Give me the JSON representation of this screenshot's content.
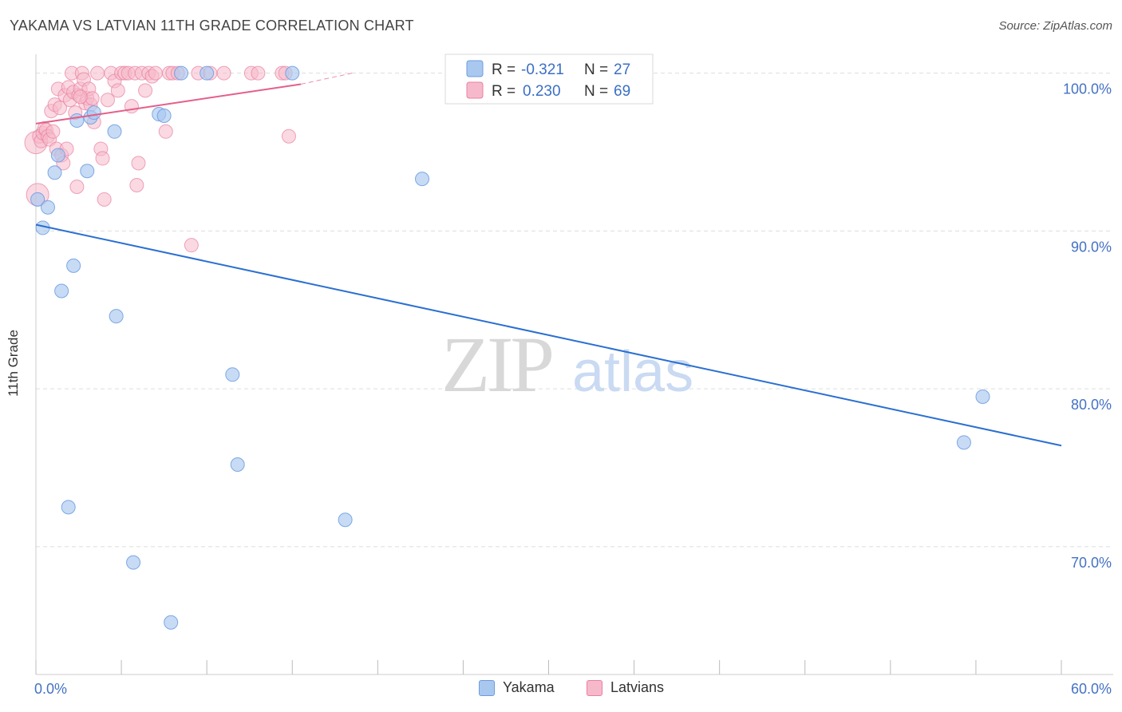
{
  "header": {
    "title": "YAKAMA VS LATVIAN 11TH GRADE CORRELATION CHART",
    "source": "Source: ZipAtlas.com"
  },
  "watermark": {
    "zip": "ZIP",
    "atlas": "atlas"
  },
  "colors": {
    "yakama_fill": "#a9c8f0",
    "yakama_stroke": "#6b9be0",
    "yakama_line": "#2a6fd1",
    "latvian_fill": "#f6b9cb",
    "latvian_stroke": "#e97fa0",
    "latvian_line": "#e4608a",
    "axis_text": "#4472c4"
  },
  "legend": {
    "rows": [
      {
        "r_label": "R =",
        "r_value": "-0.321",
        "n_label": "N =",
        "n_value": "27"
      },
      {
        "r_label": "R =",
        "r_value": "0.230",
        "n_label": "N =",
        "n_value": "69"
      }
    ]
  },
  "chart_data": {
    "type": "scatter",
    "title": "YAKAMA VS LATVIAN 11TH GRADE CORRELATION CHART",
    "xlabel": "",
    "ylabel": "11th Grade",
    "xlim": [
      0,
      60
    ],
    "ylim": [
      61.9,
      101.6
    ],
    "x_tick_labels": [
      "0.0%",
      "60.0%"
    ],
    "y_ticks": [
      70,
      80,
      90,
      100
    ],
    "y_tick_labels": [
      "70.0%",
      "80.0%",
      "90.0%",
      "100.0%"
    ],
    "grid": "horizontal dashed",
    "series": [
      {
        "name": "Yakama",
        "r": -0.321,
        "n": 27,
        "trend": {
          "x0": 0,
          "y0": 90.4,
          "x1": 60,
          "y1": 76.4
        },
        "points": [
          [
            0.1,
            92.0
          ],
          [
            0.4,
            90.2
          ],
          [
            0.7,
            91.5
          ],
          [
            1.1,
            93.7
          ],
          [
            1.3,
            94.8
          ],
          [
            1.5,
            86.2
          ],
          [
            2.2,
            87.8
          ],
          [
            2.4,
            97.0
          ],
          [
            3.0,
            93.8
          ],
          [
            3.2,
            97.2
          ],
          [
            3.4,
            97.5
          ],
          [
            4.6,
            96.3
          ],
          [
            4.7,
            84.6
          ],
          [
            7.2,
            97.4
          ],
          [
            7.5,
            97.3
          ],
          [
            8.5,
            100.0
          ],
          [
            10.0,
            100.0
          ],
          [
            11.5,
            80.9
          ],
          [
            11.8,
            75.2
          ],
          [
            15.0,
            100.0
          ],
          [
            18.1,
            71.7
          ],
          [
            22.6,
            93.3
          ],
          [
            5.7,
            69.0
          ],
          [
            1.9,
            72.5
          ],
          [
            7.9,
            65.2
          ],
          [
            55.4,
            79.5
          ],
          [
            54.3,
            76.6
          ]
        ]
      },
      {
        "name": "Latvians",
        "r": 0.23,
        "n": 69,
        "trend": {
          "x0": 0,
          "y0": 96.8,
          "x1": 15.5,
          "y1": 99.3
        },
        "trend_dashed": {
          "x0": 15.5,
          "y0": 99.3,
          "x1": 18.5,
          "y1": 100.0
        },
        "points": [
          [
            0.0,
            95.6
          ],
          [
            0.1,
            92.3
          ],
          [
            0.2,
            96.0
          ],
          [
            0.3,
            95.7
          ],
          [
            0.4,
            96.2
          ],
          [
            0.5,
            96.5
          ],
          [
            0.6,
            96.4
          ],
          [
            0.7,
            96.0
          ],
          [
            0.8,
            95.8
          ],
          [
            0.9,
            97.6
          ],
          [
            1.0,
            96.3
          ],
          [
            1.1,
            98.0
          ],
          [
            1.2,
            95.2
          ],
          [
            1.3,
            99.0
          ],
          [
            1.4,
            97.8
          ],
          [
            1.5,
            94.8
          ],
          [
            1.6,
            94.3
          ],
          [
            1.7,
            98.6
          ],
          [
            1.8,
            95.2
          ],
          [
            1.9,
            99.1
          ],
          [
            2.0,
            98.3
          ],
          [
            2.1,
            100.0
          ],
          [
            2.2,
            98.8
          ],
          [
            2.3,
            97.5
          ],
          [
            2.4,
            92.8
          ],
          [
            2.5,
            98.6
          ],
          [
            2.6,
            99.0
          ],
          [
            2.7,
            100.0
          ],
          [
            2.8,
            99.6
          ],
          [
            2.9,
            98.1
          ],
          [
            3.0,
            98.4
          ],
          [
            3.1,
            99.0
          ],
          [
            3.2,
            98.0
          ],
          [
            3.4,
            96.9
          ],
          [
            3.6,
            100.0
          ],
          [
            3.8,
            95.2
          ],
          [
            3.9,
            94.6
          ],
          [
            4.0,
            92.0
          ],
          [
            4.2,
            98.3
          ],
          [
            4.4,
            100.0
          ],
          [
            4.6,
            99.5
          ],
          [
            4.8,
            98.9
          ],
          [
            5.0,
            100.0
          ],
          [
            5.2,
            100.0
          ],
          [
            5.4,
            100.0
          ],
          [
            5.6,
            97.9
          ],
          [
            5.8,
            100.0
          ],
          [
            5.9,
            92.9
          ],
          [
            6.0,
            94.3
          ],
          [
            6.2,
            100.0
          ],
          [
            6.4,
            98.9
          ],
          [
            6.6,
            100.0
          ],
          [
            6.8,
            99.8
          ],
          [
            7.0,
            100.0
          ],
          [
            7.6,
            96.3
          ],
          [
            7.8,
            100.0
          ],
          [
            8.0,
            100.0
          ],
          [
            8.3,
            100.0
          ],
          [
            9.1,
            89.1
          ],
          [
            9.5,
            100.0
          ],
          [
            10.2,
            100.0
          ],
          [
            11.0,
            100.0
          ],
          [
            12.6,
            100.0
          ],
          [
            13.0,
            100.0
          ],
          [
            14.4,
            100.0
          ],
          [
            14.6,
            100.0
          ],
          [
            14.8,
            96.0
          ],
          [
            3.3,
            98.4
          ],
          [
            2.6,
            98.5
          ]
        ]
      }
    ]
  }
}
